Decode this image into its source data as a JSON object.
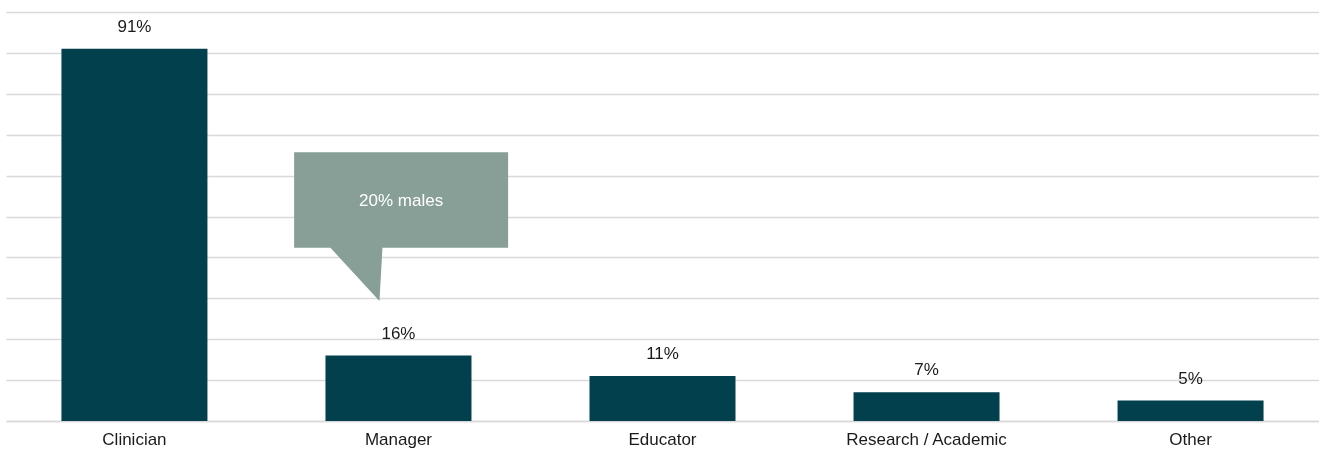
{
  "chart_data": {
    "type": "bar",
    "categories": [
      "Clinician",
      "Manager",
      "Educator",
      "Research / Academic",
      "Other"
    ],
    "values": [
      91,
      16,
      11,
      7,
      5
    ],
    "value_labels": [
      "91%",
      "16%",
      "11%",
      "7%",
      "5%"
    ],
    "color": "#03404e",
    "ylim": [
      0,
      100
    ],
    "yticks": [
      {
        "value": 0,
        "label": null
      },
      {
        "value": 10,
        "label": null
      },
      {
        "value": 20,
        "label": null
      },
      {
        "value": 30,
        "label": null
      },
      {
        "value": 40,
        "label": null
      },
      {
        "value": 50,
        "label": null
      },
      {
        "value": 60,
        "label": null
      },
      {
        "value": 70,
        "label": null
      },
      {
        "value": 80,
        "label": null
      },
      {
        "value": 90,
        "label": null
      },
      {
        "value": 100,
        "label": null
      }
    ],
    "grid": "y",
    "tick_labels": "x",
    "annotations": [
      "20% males"
    ]
  }
}
